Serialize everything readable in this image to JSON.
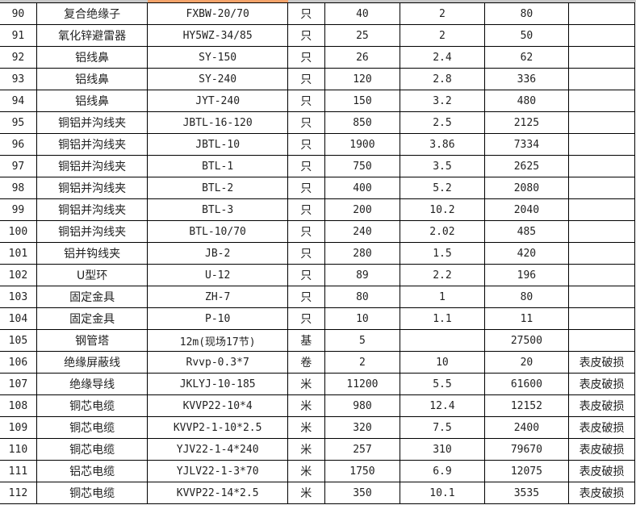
{
  "rows": [
    [
      "90",
      "复合绝缘子",
      "FXBW-20/70",
      "只",
      "40",
      "2",
      "80",
      ""
    ],
    [
      "91",
      "氧化锌避雷器",
      "HY5WZ-34/85",
      "只",
      "25",
      "2",
      "50",
      ""
    ],
    [
      "92",
      "铝线鼻",
      "SY-150",
      "只",
      "26",
      "2.4",
      "62",
      ""
    ],
    [
      "93",
      "铝线鼻",
      "SY-240",
      "只",
      "120",
      "2.8",
      "336",
      ""
    ],
    [
      "94",
      "铝线鼻",
      "JYT-240",
      "只",
      "150",
      "3.2",
      "480",
      ""
    ],
    [
      "95",
      "铜铝并沟线夹",
      "JBTL-16-120",
      "只",
      "850",
      "2.5",
      "2125",
      ""
    ],
    [
      "96",
      "铜铝并沟线夹",
      "JBTL-10",
      "只",
      "1900",
      "3.86",
      "7334",
      ""
    ],
    [
      "97",
      "铜铝并沟线夹",
      "BTL-1",
      "只",
      "750",
      "3.5",
      "2625",
      ""
    ],
    [
      "98",
      "铜铝并沟线夹",
      "BTL-2",
      "只",
      "400",
      "5.2",
      "2080",
      ""
    ],
    [
      "99",
      "铜铝并沟线夹",
      "BTL-3",
      "只",
      "200",
      "10.2",
      "2040",
      ""
    ],
    [
      "100",
      "铜铝并沟线夹",
      "BTL-10/70",
      "只",
      "240",
      "2.02",
      "485",
      ""
    ],
    [
      "101",
      "铝并钩线夹",
      "JB-2",
      "只",
      "280",
      "1.5",
      "420",
      ""
    ],
    [
      "102",
      "U型环",
      "U-12",
      "只",
      "89",
      "2.2",
      "196",
      ""
    ],
    [
      "103",
      "固定金具",
      "ZH-7",
      "只",
      "80",
      "1",
      "80",
      ""
    ],
    [
      "104",
      "固定金具",
      "P-10",
      "只",
      "10",
      "1.1",
      "11",
      ""
    ],
    [
      "105",
      "钢管塔",
      "12m(现场17节)",
      "基",
      "5",
      "",
      "27500",
      ""
    ],
    [
      "106",
      "绝缘屏蔽线",
      "Rvvp-0.3*7",
      "卷",
      "2",
      "10",
      "20",
      "表皮破损"
    ],
    [
      "107",
      "绝缘导线",
      "JKLYJ-10-185",
      "米",
      "11200",
      "5.5",
      "61600",
      "表皮破损"
    ],
    [
      "108",
      "铜芯电缆",
      "KVVP22-10*4",
      "米",
      "980",
      "12.4",
      "12152",
      "表皮破损"
    ],
    [
      "109",
      "铜芯电缆",
      "KVVP2-1-10*2.5",
      "米",
      "320",
      "7.5",
      "2400",
      "表皮破损"
    ],
    [
      "110",
      "铜芯电缆",
      "YJV22-1-4*240",
      "米",
      "257",
      "310",
      "79670",
      "表皮破损"
    ],
    [
      "111",
      "铝芯电缆",
      "YJLV22-1-3*70",
      "米",
      "1750",
      "6.9",
      "12075",
      "表皮破损"
    ],
    [
      "112",
      "铜芯电缆",
      "KVVP22-14*2.5",
      "米",
      "350",
      "10.1",
      "3535",
      "表皮破损"
    ]
  ]
}
